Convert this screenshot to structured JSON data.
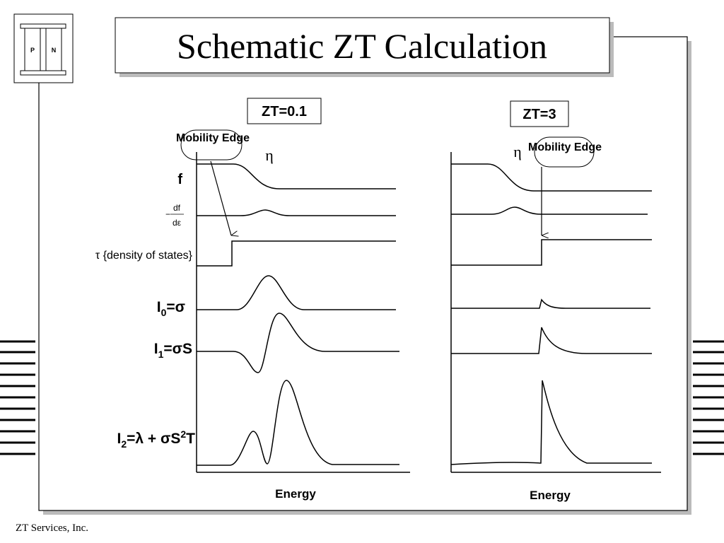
{
  "title": "Schematic ZT Calculation",
  "logo": {
    "left": "P",
    "right": "N"
  },
  "panels": [
    {
      "label": "ZT=0.1",
      "callout": "Mobility Edge",
      "eta": "η",
      "axis_label": "Energy"
    },
    {
      "label": "ZT=3",
      "callout": "Mobility Edge",
      "eta": "η",
      "axis_label": "Energy"
    }
  ],
  "rows": {
    "f": "f",
    "dfde": {
      "minus": "−",
      "num": "df",
      "den": "dε"
    },
    "tau": "τ {density of states}",
    "i0": {
      "main": "I",
      "sub": "0",
      "rest": "=σ"
    },
    "i1": {
      "main": "I",
      "sub": "1",
      "rest": "=σS"
    },
    "i2": {
      "main": "I",
      "sub": "2",
      "mid": "=λ + σS",
      "sup": "2",
      "rest": "T"
    }
  },
  "footer": "ZT Services, Inc."
}
